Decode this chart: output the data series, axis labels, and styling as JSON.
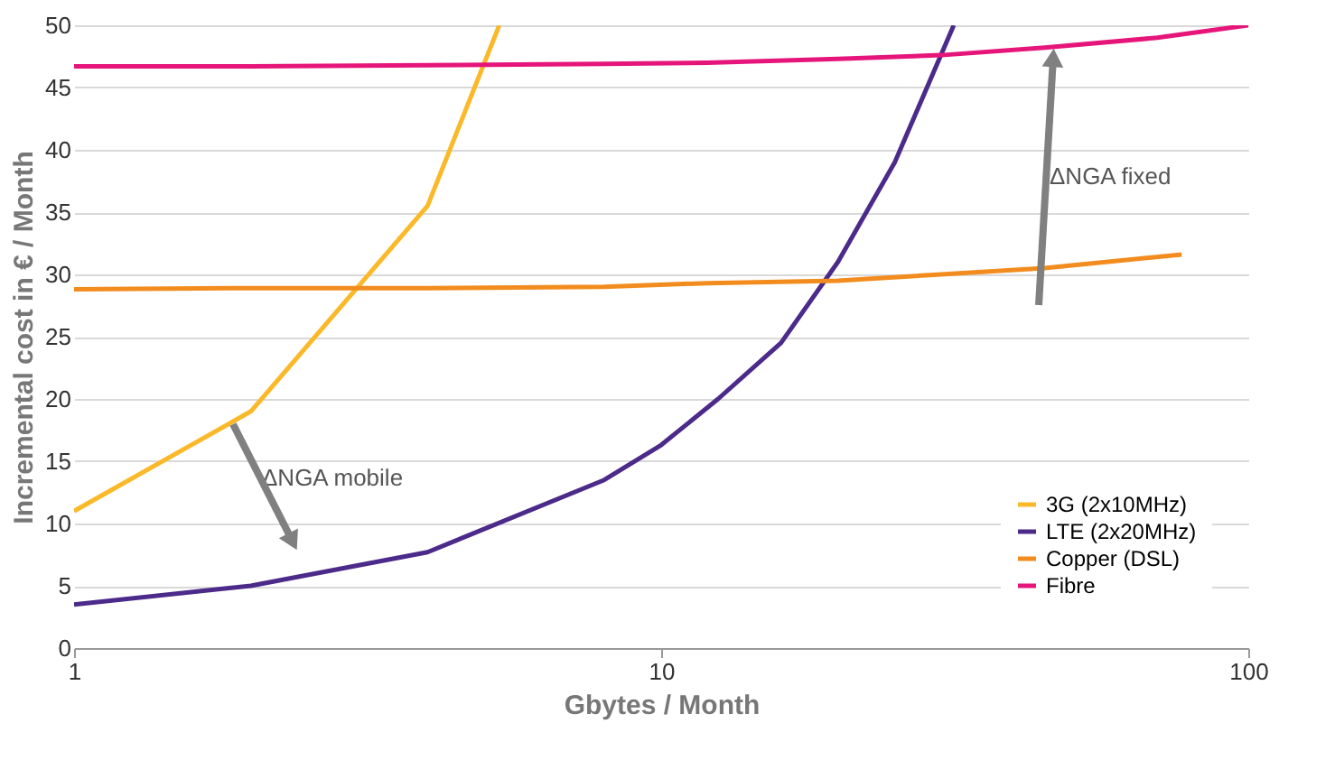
{
  "chart_data": {
    "type": "line",
    "xlabel": "Gbytes / Month",
    "ylabel": "Incremental cost in € / Month",
    "log": "x",
    "xlim": [
      1,
      100
    ],
    "xticks": [
      1,
      10,
      100
    ],
    "ylim": [
      0,
      50
    ],
    "yticks": [
      0,
      5,
      10,
      15,
      20,
      25,
      30,
      35,
      40,
      45,
      50
    ],
    "grid": "y",
    "legend": "bottom right",
    "marker": "none",
    "line_style": "solid",
    "series": [
      {
        "name": "3G (2x10MHz)",
        "color": "#fbb92a",
        "x": [
          1,
          2,
          4,
          5.3
        ],
        "values": [
          11,
          19,
          35.5,
          50
        ]
      },
      {
        "name": "LTE (2x20MHz)",
        "color": "#4b2a8a",
        "x": [
          1,
          2,
          4,
          8,
          10,
          12.5,
          16,
          20,
          25,
          31.5
        ],
        "values": [
          3.5,
          5,
          7.7,
          13.5,
          16.3,
          20,
          24.5,
          31,
          39,
          50
        ]
      },
      {
        "name": "Copper (DSL)",
        "color": "#f28c1e",
        "x": [
          1,
          2,
          4,
          8,
          12,
          20,
          30,
          45,
          77
        ],
        "values": [
          28.8,
          28.9,
          28.9,
          29,
          29.3,
          29.5,
          30,
          30.5,
          31.6
        ]
      },
      {
        "name": "Fibre",
        "color": "#e6157a",
        "x": [
          1,
          2,
          4,
          8,
          12,
          20,
          30,
          45,
          70,
          100
        ],
        "values": [
          46.7,
          46.7,
          46.8,
          46.9,
          47,
          47.3,
          47.6,
          48.2,
          49,
          50
        ]
      }
    ],
    "annotations": [
      "ΔNGA mobile",
      "ΔNGA fixed"
    ]
  }
}
